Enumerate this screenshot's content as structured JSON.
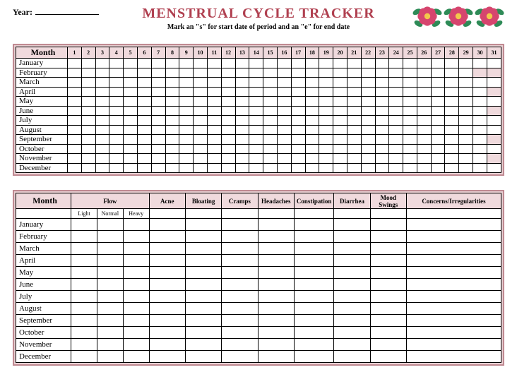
{
  "header": {
    "year_label": "Year:",
    "title": "MENSTRUAL CYCLE TRACKER",
    "subtitle": "Mark an \"s\" for start date of period and an \"e\" for end date"
  },
  "colors": {
    "border": "#c08a92",
    "header_bg": "#f0dadd",
    "title_color": "#b04050",
    "flower_petal": "#d6456e",
    "flower_center": "#f2c84b",
    "leaf": "#2e8b57"
  },
  "months": [
    "January",
    "February",
    "March",
    "April",
    "May",
    "June",
    "July",
    "August",
    "September",
    "October",
    "November",
    "December"
  ],
  "days_in_month": [
    31,
    29,
    31,
    30,
    31,
    30,
    31,
    31,
    30,
    31,
    30,
    31
  ],
  "table1": {
    "month_header": "Month",
    "day_count": 31
  },
  "table2": {
    "month_header": "Month",
    "flow_header": "Flow",
    "flow_sub": [
      "Light",
      "Normal",
      "Heavy"
    ],
    "symptoms": [
      "Acne",
      "Bloating",
      "Cramps",
      "Headaches",
      "Constipation",
      "Diarrhea",
      "Mood Swings"
    ],
    "concerns_header": "Concerns/Irregularities"
  }
}
